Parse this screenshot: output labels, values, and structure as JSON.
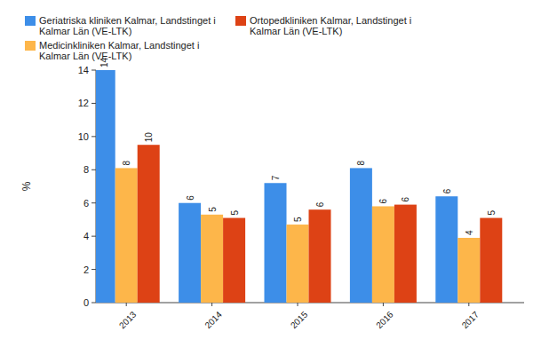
{
  "chart_data": {
    "type": "bar",
    "y_label": "%",
    "categories": [
      "2013",
      "2014",
      "2015",
      "2016",
      "2017"
    ],
    "series": [
      {
        "name": "Geriatriska kliniken Kalmar, Landstinget i Kalmar Län (VE-LTK)",
        "color": "#3d8ee8",
        "values": [
          14,
          6.0,
          7.2,
          8.1,
          6.4
        ],
        "value_labels": [
          "14",
          "6",
          "7",
          "8",
          "6"
        ]
      },
      {
        "name": "Medicinkliniken Kalmar, Landstinget i Kalmar Län (VE-LTK)",
        "color": "#fdb64a",
        "values": [
          8.1,
          5.3,
          4.7,
          5.8,
          3.9
        ],
        "value_labels": [
          "8",
          "5",
          "5",
          "6",
          "4"
        ]
      },
      {
        "name": "Ortopedkliniken Kalmar, Landstinget i Kalmar Län (VE-LTK)",
        "color": "#dd4215",
        "values": [
          9.5,
          5.1,
          5.6,
          5.9,
          5.1
        ],
        "value_labels": [
          "10",
          "5",
          "6",
          "6",
          "5"
        ]
      }
    ],
    "ylim": [
      0,
      14
    ],
    "yticks": [
      0,
      2,
      4,
      6,
      8,
      10,
      12,
      14
    ],
    "grid": false,
    "legend": "top",
    "data_labels": true
  }
}
